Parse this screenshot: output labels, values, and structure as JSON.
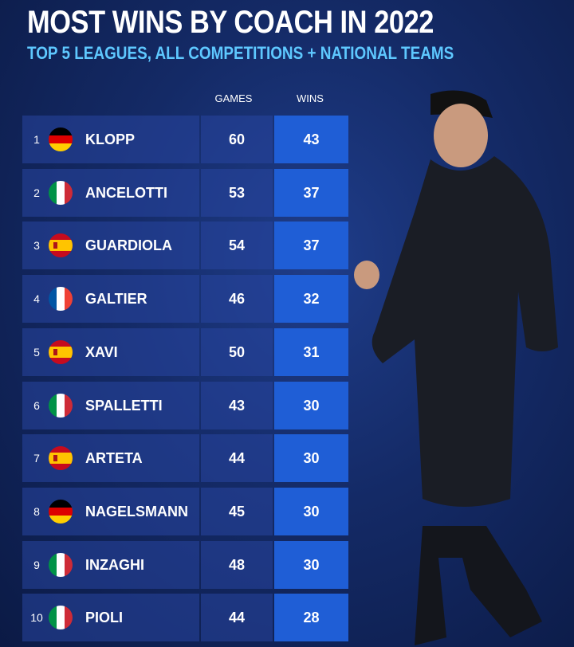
{
  "title": "MOST WINS BY COACH IN 2022",
  "subtitle": "TOP 5 LEAGUES, ALL COMPETITIONS + NATIONAL TEAMS",
  "table": {
    "columns": [
      "GAMES",
      "WINS"
    ],
    "rows": [
      [
        1,
        "KLOPP",
        60,
        43
      ],
      [
        2,
        "ANCELOTTI",
        53,
        37
      ],
      [
        3,
        "GUARDIOLA",
        54,
        37
      ],
      [
        4,
        "GALTIER",
        46,
        32
      ],
      [
        5,
        "XAVI",
        50,
        31
      ],
      [
        6,
        "SPALLETTI",
        43,
        30
      ],
      [
        7,
        "ARTETA",
        44,
        30
      ],
      [
        8,
        "NAGELSMANN",
        45,
        30
      ],
      [
        9,
        "INZAGHI",
        48,
        30
      ],
      [
        10,
        "PIOLI",
        44,
        28
      ]
    ]
  }
}
